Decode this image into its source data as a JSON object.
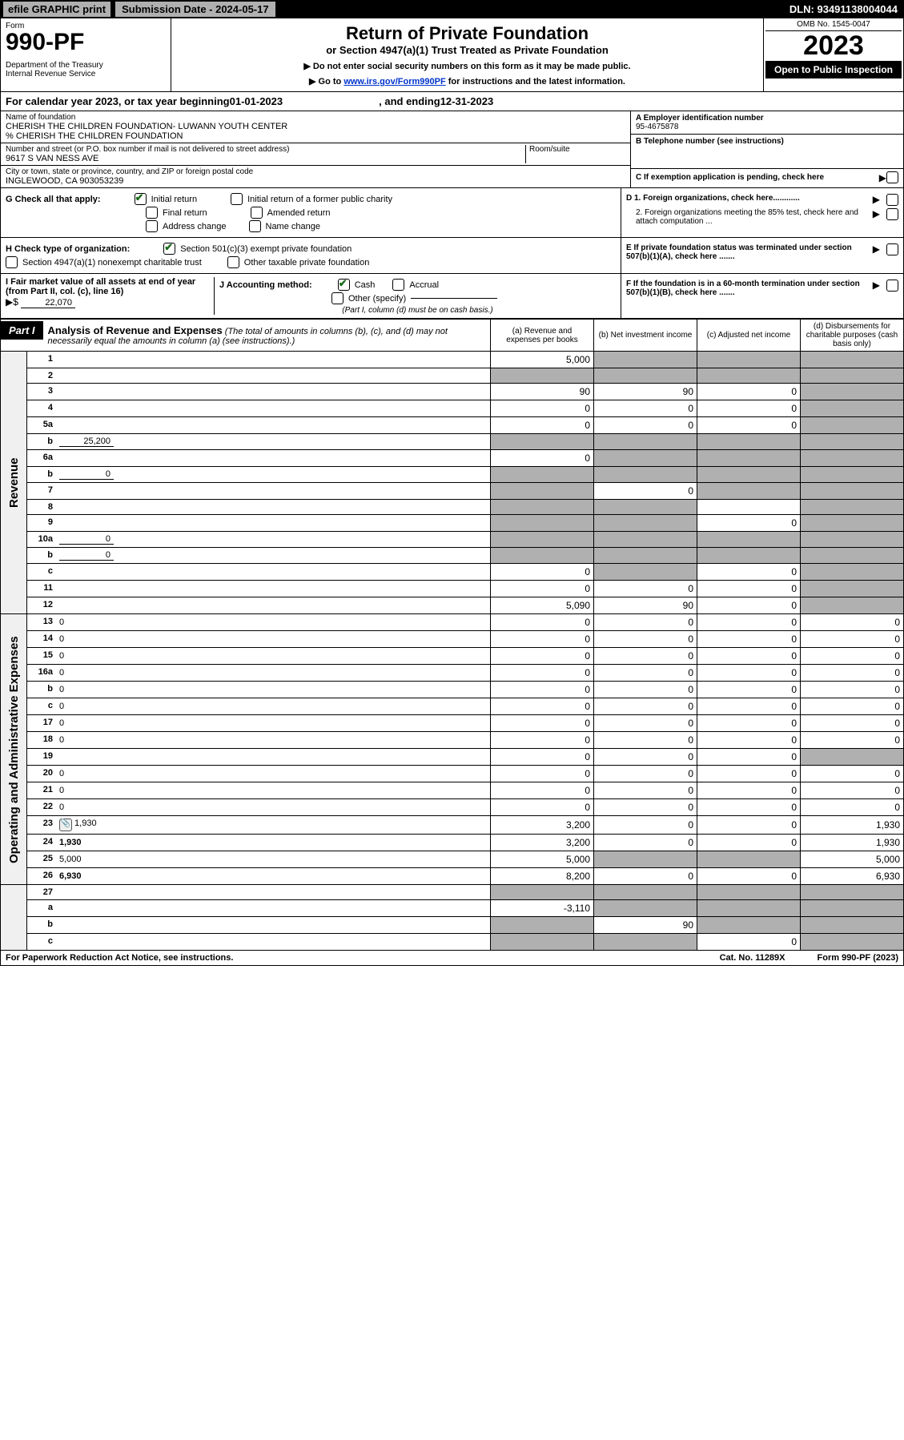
{
  "topbar": {
    "efile": "efile GRAPHIC print",
    "submission": "Submission Date - 2024-05-17",
    "dln": "DLN: 93491138004044"
  },
  "header": {
    "form_label": "Form",
    "form_number": "990-PF",
    "dept": "Department of the Treasury\nInternal Revenue Service",
    "title": "Return of Private Foundation",
    "subtitle": "or Section 4947(a)(1) Trust Treated as Private Foundation",
    "note1": "▶ Do not enter social security numbers on this form as it may be made public.",
    "note2_pre": "▶ Go to ",
    "note2_link": "www.irs.gov/Form990PF",
    "note2_post": " for instructions and the latest information.",
    "omb": "OMB No. 1545-0047",
    "year": "2023",
    "open": "Open to Public Inspection"
  },
  "calendar": {
    "pre": "For calendar year 2023, or tax year beginning ",
    "begin": "01-01-2023",
    "mid": " , and ending ",
    "end": "12-31-2023"
  },
  "name": {
    "foundation_label": "Name of foundation",
    "foundation": "CHERISH THE CHILDREN FOUNDATION- LUWANN YOUTH CENTER",
    "care_of": "% CHERISH THE CHILDREN FOUNDATION",
    "street_label": "Number and street (or P.O. box number if mail is not delivered to street address)",
    "street": "9617 S VAN NESS AVE",
    "room_label": "Room/suite",
    "city_label": "City or town, state or province, country, and ZIP or foreign postal code",
    "city": "INGLEWOOD, CA  903053239",
    "ein_label": "A Employer identification number",
    "ein": "95-4675878",
    "phone_label": "B Telephone number (see instructions)",
    "pending_label": "C If exemption application is pending, check here"
  },
  "g": {
    "label": "G Check all that apply:",
    "initial": "Initial return",
    "initial_former": "Initial return of a former public charity",
    "final": "Final return",
    "amended": "Amended return",
    "address": "Address change",
    "name": "Name change"
  },
  "h": {
    "label": "H Check type of organization:",
    "s501": "Section 501(c)(3) exempt private foundation",
    "s4947": "Section 4947(a)(1) nonexempt charitable trust",
    "other": "Other taxable private foundation"
  },
  "i": {
    "label": "I Fair market value of all assets at end of year (from Part II, col. (c), line 16)",
    "arrow": "▶$",
    "val": "22,070"
  },
  "j": {
    "label": "J Accounting method:",
    "cash": "Cash",
    "accrual": "Accrual",
    "other": "Other (specify)",
    "note": "(Part I, column (d) must be on cash basis.)"
  },
  "d": {
    "d1": "D 1. Foreign organizations, check here............",
    "d2": "2. Foreign organizations meeting the 85% test, check here and attach computation ...",
    "e": "E  If private foundation status was terminated under section 507(b)(1)(A), check here .......",
    "f": "F  If the foundation is in a 60-month termination under section 507(b)(1)(B), check here ......."
  },
  "part1": {
    "label": "Part I",
    "title": "Analysis of Revenue and Expenses",
    "note": " (The total of amounts in columns (b), (c), and (d) may not necessarily equal the amounts in column (a) (see instructions).)",
    "col_a": "(a)   Revenue and expenses per books",
    "col_b": "(b)   Net investment income",
    "col_c": "(c)   Adjusted net income",
    "col_d": "(d)  Disbursements for charitable purposes (cash basis only)"
  },
  "sections": {
    "revenue": "Revenue",
    "expenses": "Operating and Administrative Expenses"
  },
  "lines": {
    "l1": {
      "n": "1",
      "d": "",
      "a": "5,000",
      "b": "",
      "c": "",
      "sb": true,
      "sc": true,
      "sd": true
    },
    "l2": {
      "n": "2",
      "d": "",
      "a": "",
      "b": "",
      "c": "",
      "sa": true,
      "sb": true,
      "sc": true,
      "sd": true
    },
    "l3": {
      "n": "3",
      "d": "",
      "a": "90",
      "b": "90",
      "c": "0",
      "sd": true
    },
    "l4": {
      "n": "4",
      "d": "",
      "a": "0",
      "b": "0",
      "c": "0",
      "sd": true
    },
    "l5a": {
      "n": "5a",
      "d": "",
      "a": "0",
      "b": "0",
      "c": "0",
      "sd": true
    },
    "l5b": {
      "n": "b",
      "d": "",
      "inline": "25,200",
      "a": "",
      "b": "",
      "c": "",
      "sa": true,
      "sb": true,
      "sc": true,
      "sd": true
    },
    "l6a": {
      "n": "6a",
      "d": "",
      "a": "0",
      "b": "",
      "c": "",
      "sb": true,
      "sc": true,
      "sd": true
    },
    "l6b": {
      "n": "b",
      "d": "",
      "inline": "0",
      "a": "",
      "b": "",
      "c": "",
      "sa": true,
      "sb": true,
      "sc": true,
      "sd": true
    },
    "l7": {
      "n": "7",
      "d": "",
      "a": "",
      "b": "0",
      "c": "",
      "sa": true,
      "sc": true,
      "sd": true
    },
    "l8": {
      "n": "8",
      "d": "",
      "a": "",
      "b": "",
      "c": "",
      "sa": true,
      "sb": true,
      "sd": true
    },
    "l9": {
      "n": "9",
      "d": "",
      "a": "",
      "b": "",
      "c": "0",
      "sa": true,
      "sb": true,
      "sd": true
    },
    "l10a": {
      "n": "10a",
      "d": "",
      "inline": "0",
      "a": "",
      "b": "",
      "c": "",
      "sa": true,
      "sb": true,
      "sc": true,
      "sd": true
    },
    "l10b": {
      "n": "b",
      "d": "",
      "inline": "0",
      "a": "",
      "b": "",
      "c": "",
      "sa": true,
      "sb": true,
      "sc": true,
      "sd": true
    },
    "l10c": {
      "n": "c",
      "d": "",
      "a": "0",
      "b": "",
      "c": "0",
      "sb": true,
      "sd": true
    },
    "l11": {
      "n": "11",
      "d": "",
      "a": "0",
      "b": "0",
      "c": "0",
      "sd": true
    },
    "l12": {
      "n": "12",
      "d": "",
      "a": "5,090",
      "b": "90",
      "c": "0",
      "sd": true,
      "bold": true
    },
    "l13": {
      "n": "13",
      "d": "0",
      "a": "0",
      "b": "0",
      "c": "0"
    },
    "l14": {
      "n": "14",
      "d": "0",
      "a": "0",
      "b": "0",
      "c": "0"
    },
    "l15": {
      "n": "15",
      "d": "0",
      "a": "0",
      "b": "0",
      "c": "0"
    },
    "l16a": {
      "n": "16a",
      "d": "0",
      "a": "0",
      "b": "0",
      "c": "0"
    },
    "l16b": {
      "n": "b",
      "d": "0",
      "a": "0",
      "b": "0",
      "c": "0"
    },
    "l16c": {
      "n": "c",
      "d": "0",
      "a": "0",
      "b": "0",
      "c": "0"
    },
    "l17": {
      "n": "17",
      "d": "0",
      "a": "0",
      "b": "0",
      "c": "0"
    },
    "l18": {
      "n": "18",
      "d": "0",
      "a": "0",
      "b": "0",
      "c": "0"
    },
    "l19": {
      "n": "19",
      "d": "",
      "a": "0",
      "b": "0",
      "c": "0",
      "sd": true
    },
    "l20": {
      "n": "20",
      "d": "0",
      "a": "0",
      "b": "0",
      "c": "0"
    },
    "l21": {
      "n": "21",
      "d": "0",
      "a": "0",
      "b": "0",
      "c": "0"
    },
    "l22": {
      "n": "22",
      "d": "0",
      "a": "0",
      "b": "0",
      "c": "0"
    },
    "l23": {
      "n": "23",
      "d": "1,930",
      "a": "3,200",
      "b": "0",
      "c": "0",
      "attach": true
    },
    "l24": {
      "n": "24",
      "d": "1,930",
      "a": "3,200",
      "b": "0",
      "c": "0",
      "bold": true
    },
    "l25": {
      "n": "25",
      "d": "5,000",
      "a": "5,000",
      "b": "",
      "c": "",
      "sb": true,
      "sc": true
    },
    "l26": {
      "n": "26",
      "d": "6,930",
      "a": "8,200",
      "b": "0",
      "c": "0",
      "bold": true
    },
    "l27": {
      "n": "27",
      "d": "",
      "a": "",
      "b": "",
      "c": "",
      "sa": true,
      "sb": true,
      "sc": true,
      "sd": true
    },
    "l27a": {
      "n": "a",
      "d": "",
      "a": "-3,110",
      "b": "",
      "c": "",
      "sb": true,
      "sc": true,
      "sd": true,
      "bold": true
    },
    "l27b": {
      "n": "b",
      "d": "",
      "a": "",
      "b": "90",
      "c": "",
      "sa": true,
      "sc": true,
      "sd": true,
      "bold": true
    },
    "l27c": {
      "n": "c",
      "d": "",
      "a": "",
      "b": "",
      "c": "0",
      "sa": true,
      "sb": true,
      "sd": true,
      "bold": true
    }
  },
  "footer": {
    "left": "For Paperwork Reduction Act Notice, see instructions.",
    "mid": "Cat. No. 11289X",
    "right": "Form 990-PF (2023)"
  }
}
